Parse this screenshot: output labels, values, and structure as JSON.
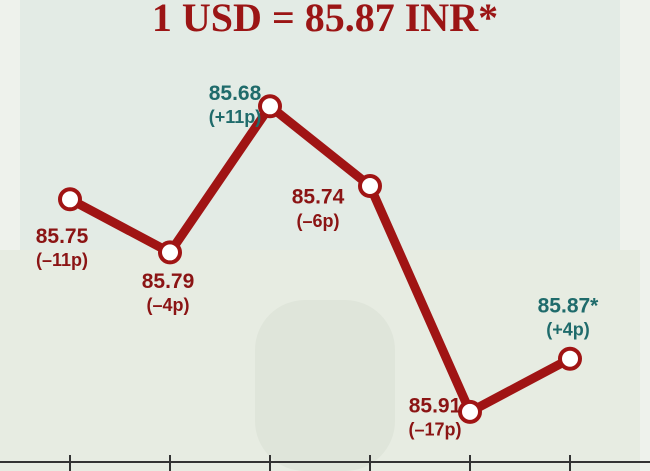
{
  "chart_data": {
    "type": "line",
    "title": "1 USD = 85.87 INR*",
    "categories": [
      null,
      null,
      null,
      null,
      null,
      null
    ],
    "values": [
      85.75,
      85.79,
      85.68,
      85.74,
      85.91,
      85.87
    ],
    "value_labels": [
      "85.75",
      "85.79",
      "85.68",
      "85.74",
      "85.91",
      "85.87*"
    ],
    "annotations": [
      "(–11p)",
      "(–4p)",
      "(+11p)",
      "(–6p)",
      "(–17p)",
      "(+4p)"
    ],
    "label_colors": [
      "#8b1414",
      "#8b1414",
      "#1f6b6b",
      "#8b1414",
      "#8b1414",
      "#1f6b6b"
    ],
    "color": "#a01414",
    "ylim": [
      85.6,
      85.95
    ],
    "y_inverted": true
  }
}
